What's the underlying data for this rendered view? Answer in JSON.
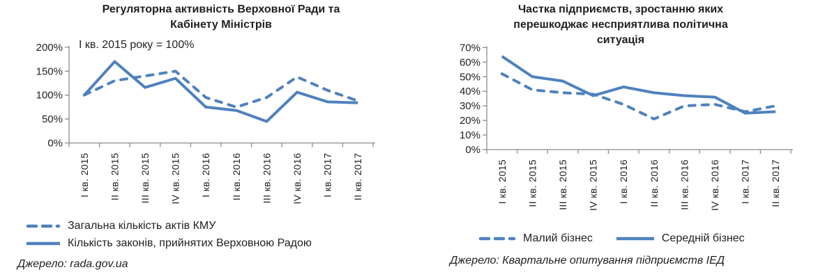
{
  "colors": {
    "line": "#4F81BD",
    "axis": "#8C8C8C",
    "text": "#1F1F1F"
  },
  "chart_data": [
    {
      "type": "line",
      "title": "Регуляторна активність Верховної Ради та Кабінету Міністрів",
      "title_lines": [
        "Регуляторна активність Верховної Ради та",
        "Кабінету Міністрів"
      ],
      "subtitle": "І кв. 2015 року = 100%",
      "categories": [
        "І кв. 2015",
        "ІІ кв. 2015",
        "ІІІ кв. 2015",
        "ІV кв. 2015",
        "І кв. 2016",
        "ІІ кв. 2016",
        "ІІІ кв. 2016",
        "ІV кв. 2016",
        "І кв. 2017",
        "ІІ кв. 2017"
      ],
      "ylim": [
        0,
        200
      ],
      "ytick_step": 50,
      "ytick_suffix": "%",
      "grid": false,
      "legend_position": "bottom-left-column",
      "series": [
        {
          "name": "Загальна кількість актів КМУ",
          "line_style": "dashed",
          "values": [
            100,
            130,
            140,
            150,
            95,
            75,
            95,
            138,
            110,
            88
          ]
        },
        {
          "name": "Кількість законів, прийнятих Верховною Радою",
          "line_style": "solid",
          "values": [
            100,
            170,
            116,
            135,
            75,
            68,
            45,
            106,
            86,
            84
          ]
        }
      ],
      "source": "Джерело: rada.gov.ua"
    },
    {
      "type": "line",
      "title": "Частка підприємств, зростанню яких перешкоджає несприятлива політична ситуація",
      "title_lines": [
        "Частка підприємств, зростанню яких",
        "перешкоджає несприятлива політична",
        "ситуація"
      ],
      "subtitle": "",
      "categories": [
        "І кв. 2015",
        "ІІ кв. 2015",
        "ІІІ кв. 2015",
        "ІV кв. 2015",
        "І кв. 2016",
        "ІІ кв. 2016",
        "ІІІ кв. 2016",
        "ІV кв. 2016",
        "І кв. 2017",
        "ІІ кв. 2017"
      ],
      "ylim": [
        0,
        70
      ],
      "ytick_step": 10,
      "ytick_suffix": "%",
      "grid": false,
      "legend_position": "bottom-row",
      "series": [
        {
          "name": "Малий бізнес",
          "line_style": "dashed",
          "values": [
            52,
            41,
            39,
            38,
            31,
            21,
            30,
            31,
            26,
            30
          ]
        },
        {
          "name": "Середній бізнес",
          "line_style": "solid",
          "values": [
            64,
            50,
            47,
            37,
            43,
            39,
            37,
            36,
            25,
            26
          ]
        }
      ],
      "source": "Джерело: Квартальне опитування підприємств ІЕД"
    }
  ]
}
